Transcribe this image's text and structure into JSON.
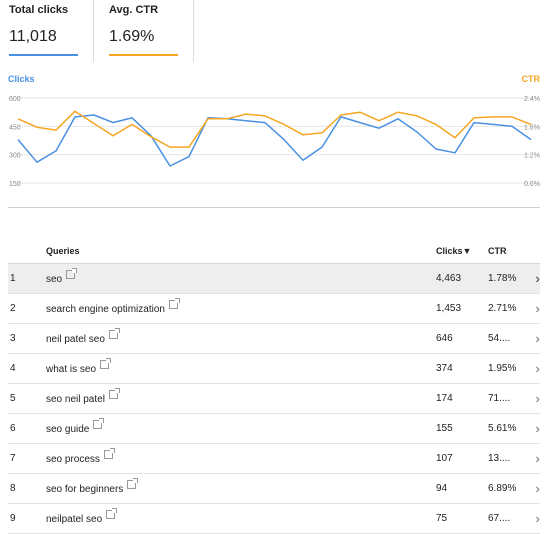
{
  "metrics": [
    {
      "label": "Total clicks",
      "value": "11,018",
      "color": "#4a90e2"
    },
    {
      "label": "Avg. CTR",
      "value": "1.69%",
      "color": "#f5a623"
    }
  ],
  "chart_data": {
    "type": "line",
    "left_axis_label": "Clicks",
    "right_axis_label": "CTR",
    "left_ticks": [
      "600",
      "450",
      "300",
      "150"
    ],
    "right_ticks": [
      "2.4%",
      "1.8%",
      "1.2%",
      "0.6%"
    ],
    "left_range": [
      150,
      600
    ],
    "right_range": [
      0.6,
      2.4
    ],
    "series": [
      {
        "name": "Clicks",
        "color": "#4a90e2",
        "values": [
          380,
          260,
          320,
          500,
          510,
          470,
          495,
          400,
          240,
          290,
          495,
          490,
          480,
          470,
          380,
          270,
          340,
          500,
          470,
          440,
          490,
          420,
          330,
          310,
          470,
          460,
          450,
          380
        ]
      },
      {
        "name": "CTR",
        "color": "#f5a623",
        "values": [
          1.96,
          1.78,
          1.72,
          2.12,
          1.86,
          1.6,
          1.84,
          1.58,
          1.36,
          1.36,
          1.96,
          1.96,
          2.06,
          2.02,
          1.84,
          1.62,
          1.66,
          2.04,
          2.1,
          1.92,
          2.1,
          2.02,
          1.84,
          1.56,
          1.98,
          2.0,
          2.0,
          1.84
        ]
      }
    ]
  },
  "table": {
    "headers": {
      "index": "",
      "query": "Queries",
      "clicks": "Clicks▼",
      "ctr": "CTR"
    },
    "rows": [
      {
        "index": "1",
        "query": "seo",
        "clicks": "4,463",
        "ctr": "1.78%"
      },
      {
        "index": "2",
        "query": "search engine optimization",
        "clicks": "1,453",
        "ctr": "2.71%"
      },
      {
        "index": "3",
        "query": "neil patel seo",
        "clicks": "646",
        "ctr": "54...."
      },
      {
        "index": "4",
        "query": "what is seo",
        "clicks": "374",
        "ctr": "1.95%"
      },
      {
        "index": "5",
        "query": "seo neil patel",
        "clicks": "174",
        "ctr": "71...."
      },
      {
        "index": "6",
        "query": "seo guide",
        "clicks": "155",
        "ctr": "5.61%"
      },
      {
        "index": "7",
        "query": "seo process",
        "clicks": "107",
        "ctr": "13...."
      },
      {
        "index": "8",
        "query": "seo for beginners",
        "clicks": "94",
        "ctr": "6.89%"
      },
      {
        "index": "9",
        "query": "neilpatel seo",
        "clicks": "75",
        "ctr": "67...."
      }
    ],
    "selected_row": 0,
    "row_action_icon": "double-chevron-right-icon",
    "link_icon": "external-link-icon"
  }
}
